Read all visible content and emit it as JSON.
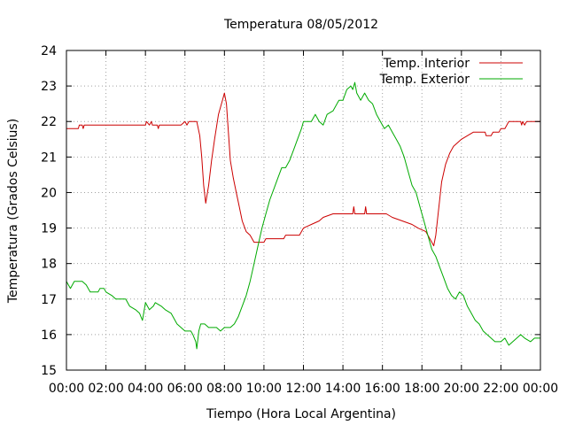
{
  "chart_data": {
    "type": "line",
    "title": "Temperatura 08/05/2012",
    "xlabel": "Tiempo (Hora Local Argentina)",
    "ylabel": "Temperatura (Grados Celsius)",
    "xlim": [
      0,
      24
    ],
    "ylim": [
      15,
      24
    ],
    "x_unit": "hours",
    "x_tick_values": [
      0,
      2,
      4,
      6,
      8,
      10,
      12,
      14,
      16,
      18,
      20,
      22,
      24
    ],
    "x_tick_labels": [
      "00:00",
      "02:00",
      "04:00",
      "06:00",
      "08:00",
      "10:00",
      "12:00",
      "14:00",
      "16:00",
      "18:00",
      "20:00",
      "22:00",
      "00:00"
    ],
    "y_tick_values": [
      15,
      16,
      17,
      18,
      19,
      20,
      21,
      22,
      23,
      24
    ],
    "y_tick_labels": [
      "15",
      "16",
      "17",
      "18",
      "19",
      "20",
      "21",
      "22",
      "23",
      "24"
    ],
    "grid": true,
    "legend_position": "top-right",
    "series": [
      {
        "name": "Temp. Interior",
        "color": "#cc0000",
        "points": [
          [
            0,
            21.8
          ],
          [
            0.6,
            21.8
          ],
          [
            0.65,
            21.9
          ],
          [
            0.8,
            21.9
          ],
          [
            0.85,
            21.8
          ],
          [
            0.9,
            21.9
          ],
          [
            4,
            21.9
          ],
          [
            4.05,
            22.0
          ],
          [
            4.2,
            21.9
          ],
          [
            4.3,
            22.0
          ],
          [
            4.35,
            21.9
          ],
          [
            4.6,
            21.9
          ],
          [
            4.65,
            21.8
          ],
          [
            4.7,
            21.9
          ],
          [
            5.8,
            21.9
          ],
          [
            6,
            22.0
          ],
          [
            6.1,
            21.9
          ],
          [
            6.2,
            22.0
          ],
          [
            6.6,
            22.0
          ],
          [
            6.75,
            21.6
          ],
          [
            6.85,
            21.0
          ],
          [
            6.95,
            20.2
          ],
          [
            7.05,
            19.7
          ],
          [
            7.2,
            20.2
          ],
          [
            7.35,
            20.9
          ],
          [
            7.5,
            21.5
          ],
          [
            7.7,
            22.2
          ],
          [
            7.9,
            22.6
          ],
          [
            8.0,
            22.8
          ],
          [
            8.1,
            22.5
          ],
          [
            8.2,
            21.7
          ],
          [
            8.3,
            20.9
          ],
          [
            8.45,
            20.4
          ],
          [
            8.6,
            20.0
          ],
          [
            8.75,
            19.6
          ],
          [
            8.9,
            19.2
          ],
          [
            9.1,
            18.9
          ],
          [
            9.3,
            18.8
          ],
          [
            9.5,
            18.6
          ],
          [
            10.0,
            18.6
          ],
          [
            10.1,
            18.7
          ],
          [
            11,
            18.7
          ],
          [
            11.1,
            18.8
          ],
          [
            11.8,
            18.8
          ],
          [
            12.0,
            19.0
          ],
          [
            12.4,
            19.1
          ],
          [
            12.8,
            19.2
          ],
          [
            13,
            19.3
          ],
          [
            13.5,
            19.4
          ],
          [
            14.5,
            19.4
          ],
          [
            14.55,
            19.6
          ],
          [
            14.6,
            19.4
          ],
          [
            15.1,
            19.4
          ],
          [
            15.15,
            19.6
          ],
          [
            15.2,
            19.4
          ],
          [
            16.2,
            19.4
          ],
          [
            16.5,
            19.3
          ],
          [
            17.0,
            19.2
          ],
          [
            17.5,
            19.1
          ],
          [
            17.8,
            19.0
          ],
          [
            18.2,
            18.9
          ],
          [
            18.4,
            18.7
          ],
          [
            18.6,
            18.5
          ],
          [
            18.7,
            18.8
          ],
          [
            18.8,
            19.3
          ],
          [
            18.9,
            19.8
          ],
          [
            19.0,
            20.3
          ],
          [
            19.2,
            20.8
          ],
          [
            19.4,
            21.1
          ],
          [
            19.6,
            21.3
          ],
          [
            19.8,
            21.4
          ],
          [
            20.0,
            21.5
          ],
          [
            20.3,
            21.6
          ],
          [
            20.6,
            21.7
          ],
          [
            21.2,
            21.7
          ],
          [
            21.25,
            21.6
          ],
          [
            21.5,
            21.6
          ],
          [
            21.6,
            21.7
          ],
          [
            21.9,
            21.7
          ],
          [
            22.0,
            21.8
          ],
          [
            22.2,
            21.8
          ],
          [
            22.4,
            22.0
          ],
          [
            23.0,
            22.0
          ],
          [
            23.05,
            21.9
          ],
          [
            23.1,
            22.0
          ],
          [
            23.2,
            21.9
          ],
          [
            23.3,
            22.0
          ],
          [
            24,
            22.0
          ]
        ]
      },
      {
        "name": "Temp. Exterior",
        "color": "#00aa00",
        "points": [
          [
            0,
            17.5
          ],
          [
            0.1,
            17.4
          ],
          [
            0.2,
            17.3
          ],
          [
            0.3,
            17.4
          ],
          [
            0.4,
            17.5
          ],
          [
            0.8,
            17.5
          ],
          [
            1.0,
            17.4
          ],
          [
            1.2,
            17.2
          ],
          [
            1.6,
            17.2
          ],
          [
            1.7,
            17.3
          ],
          [
            1.9,
            17.3
          ],
          [
            2.0,
            17.2
          ],
          [
            2.3,
            17.1
          ],
          [
            2.5,
            17.0
          ],
          [
            3.0,
            17.0
          ],
          [
            3.2,
            16.8
          ],
          [
            3.5,
            16.7
          ],
          [
            3.7,
            16.6
          ],
          [
            3.85,
            16.4
          ],
          [
            4.0,
            16.9
          ],
          [
            4.2,
            16.7
          ],
          [
            4.4,
            16.8
          ],
          [
            4.5,
            16.9
          ],
          [
            4.8,
            16.8
          ],
          [
            5.0,
            16.7
          ],
          [
            5.3,
            16.6
          ],
          [
            5.6,
            16.3
          ],
          [
            6.0,
            16.1
          ],
          [
            6.3,
            16.1
          ],
          [
            6.4,
            16.0
          ],
          [
            6.55,
            15.8
          ],
          [
            6.6,
            15.6
          ],
          [
            6.7,
            16.1
          ],
          [
            6.8,
            16.3
          ],
          [
            7.0,
            16.3
          ],
          [
            7.2,
            16.2
          ],
          [
            7.6,
            16.2
          ],
          [
            7.8,
            16.1
          ],
          [
            8.0,
            16.2
          ],
          [
            8.3,
            16.2
          ],
          [
            8.5,
            16.3
          ],
          [
            8.7,
            16.5
          ],
          [
            8.9,
            16.8
          ],
          [
            9.1,
            17.1
          ],
          [
            9.3,
            17.5
          ],
          [
            9.5,
            18.0
          ],
          [
            9.7,
            18.5
          ],
          [
            9.9,
            19.0
          ],
          [
            10.1,
            19.4
          ],
          [
            10.3,
            19.8
          ],
          [
            10.5,
            20.1
          ],
          [
            10.7,
            20.4
          ],
          [
            10.9,
            20.7
          ],
          [
            11.1,
            20.7
          ],
          [
            11.3,
            20.9
          ],
          [
            11.5,
            21.2
          ],
          [
            11.7,
            21.5
          ],
          [
            11.9,
            21.8
          ],
          [
            12.0,
            22.0
          ],
          [
            12.4,
            22.0
          ],
          [
            12.6,
            22.2
          ],
          [
            12.8,
            22.0
          ],
          [
            13.0,
            21.9
          ],
          [
            13.2,
            22.2
          ],
          [
            13.5,
            22.3
          ],
          [
            13.8,
            22.6
          ],
          [
            14.0,
            22.6
          ],
          [
            14.2,
            22.9
          ],
          [
            14.4,
            23.0
          ],
          [
            14.5,
            22.9
          ],
          [
            14.6,
            23.1
          ],
          [
            14.7,
            22.8
          ],
          [
            14.9,
            22.6
          ],
          [
            15.1,
            22.8
          ],
          [
            15.3,
            22.6
          ],
          [
            15.5,
            22.5
          ],
          [
            15.7,
            22.2
          ],
          [
            15.9,
            22.0
          ],
          [
            16.1,
            21.8
          ],
          [
            16.3,
            21.9
          ],
          [
            16.5,
            21.7
          ],
          [
            16.7,
            21.5
          ],
          [
            16.9,
            21.3
          ],
          [
            17.1,
            21.0
          ],
          [
            17.3,
            20.6
          ],
          [
            17.5,
            20.2
          ],
          [
            17.7,
            20.0
          ],
          [
            17.9,
            19.6
          ],
          [
            18.1,
            19.2
          ],
          [
            18.3,
            18.8
          ],
          [
            18.5,
            18.4
          ],
          [
            18.7,
            18.2
          ],
          [
            18.9,
            17.9
          ],
          [
            19.1,
            17.6
          ],
          [
            19.3,
            17.3
          ],
          [
            19.5,
            17.1
          ],
          [
            19.7,
            17.0
          ],
          [
            19.9,
            17.2
          ],
          [
            20.1,
            17.1
          ],
          [
            20.3,
            16.8
          ],
          [
            20.5,
            16.6
          ],
          [
            20.7,
            16.4
          ],
          [
            20.9,
            16.3
          ],
          [
            21.1,
            16.1
          ],
          [
            21.3,
            16.0
          ],
          [
            21.5,
            15.9
          ],
          [
            21.7,
            15.8
          ],
          [
            22.0,
            15.8
          ],
          [
            22.2,
            15.9
          ],
          [
            22.4,
            15.7
          ],
          [
            22.6,
            15.8
          ],
          [
            22.8,
            15.9
          ],
          [
            23.0,
            16.0
          ],
          [
            23.2,
            15.9
          ],
          [
            23.5,
            15.8
          ],
          [
            23.7,
            15.9
          ],
          [
            24.0,
            15.9
          ]
        ]
      }
    ]
  }
}
